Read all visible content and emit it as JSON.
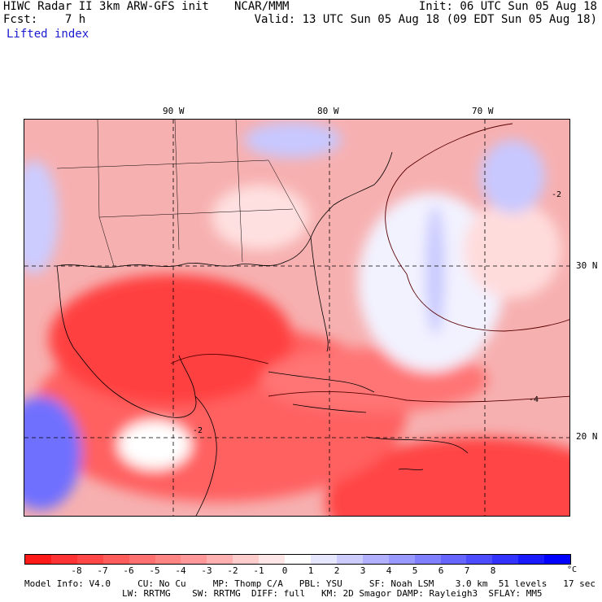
{
  "header": {
    "model": "HIWC Radar II 3km ARW-GFS init",
    "org": "NCAR/MMM",
    "forecast": "Fcst:    7 h",
    "init": "Init: 06 UTC Sun 05 Aug 18",
    "valid": "Valid: 13 UTC Sun 05 Aug 18 (09 EDT Sun 05 Aug 18)",
    "field": "Lifted index"
  },
  "map": {
    "longitude_labels": [
      "90 W",
      "80 W",
      "70 W"
    ],
    "latitude_labels": [
      "30 N",
      "20 N"
    ],
    "contour_labels": [
      "-2",
      "-2",
      "-4"
    ]
  },
  "colorbar": {
    "ticks": [
      "-8",
      "-7",
      "-6",
      "-5",
      "-4",
      "-3",
      "-2",
      "-1",
      "0",
      "1",
      "2",
      "3",
      "4",
      "5",
      "6",
      "7",
      "8"
    ],
    "unit": "°C",
    "colors": [
      "#ff1a1a",
      "#ff3333",
      "#ff4747",
      "#ff5c5c",
      "#ff7070",
      "#ff8585",
      "#ff9999",
      "#ffb0b0",
      "#ffcccc",
      "#ffe6e6",
      "#ffffff",
      "#e6e6ff",
      "#ccccff",
      "#b0b0ff",
      "#9999ff",
      "#8080ff",
      "#6666ff",
      "#4d4dff",
      "#3333ff",
      "#1a1aff",
      "#0000ff"
    ]
  },
  "footer": {
    "line1": "Model Info: V4.0     CU: No Cu     MP: Thomp C/A   PBL: YSU     SF: Noah LSM    3.0 km  51 levels   17 sec",
    "line2": "LW: RRTMG    SW: RRTMG  DIFF: full   KM: 2D Smagor DAMP: Rayleigh3  SFLAY: MM5"
  }
}
